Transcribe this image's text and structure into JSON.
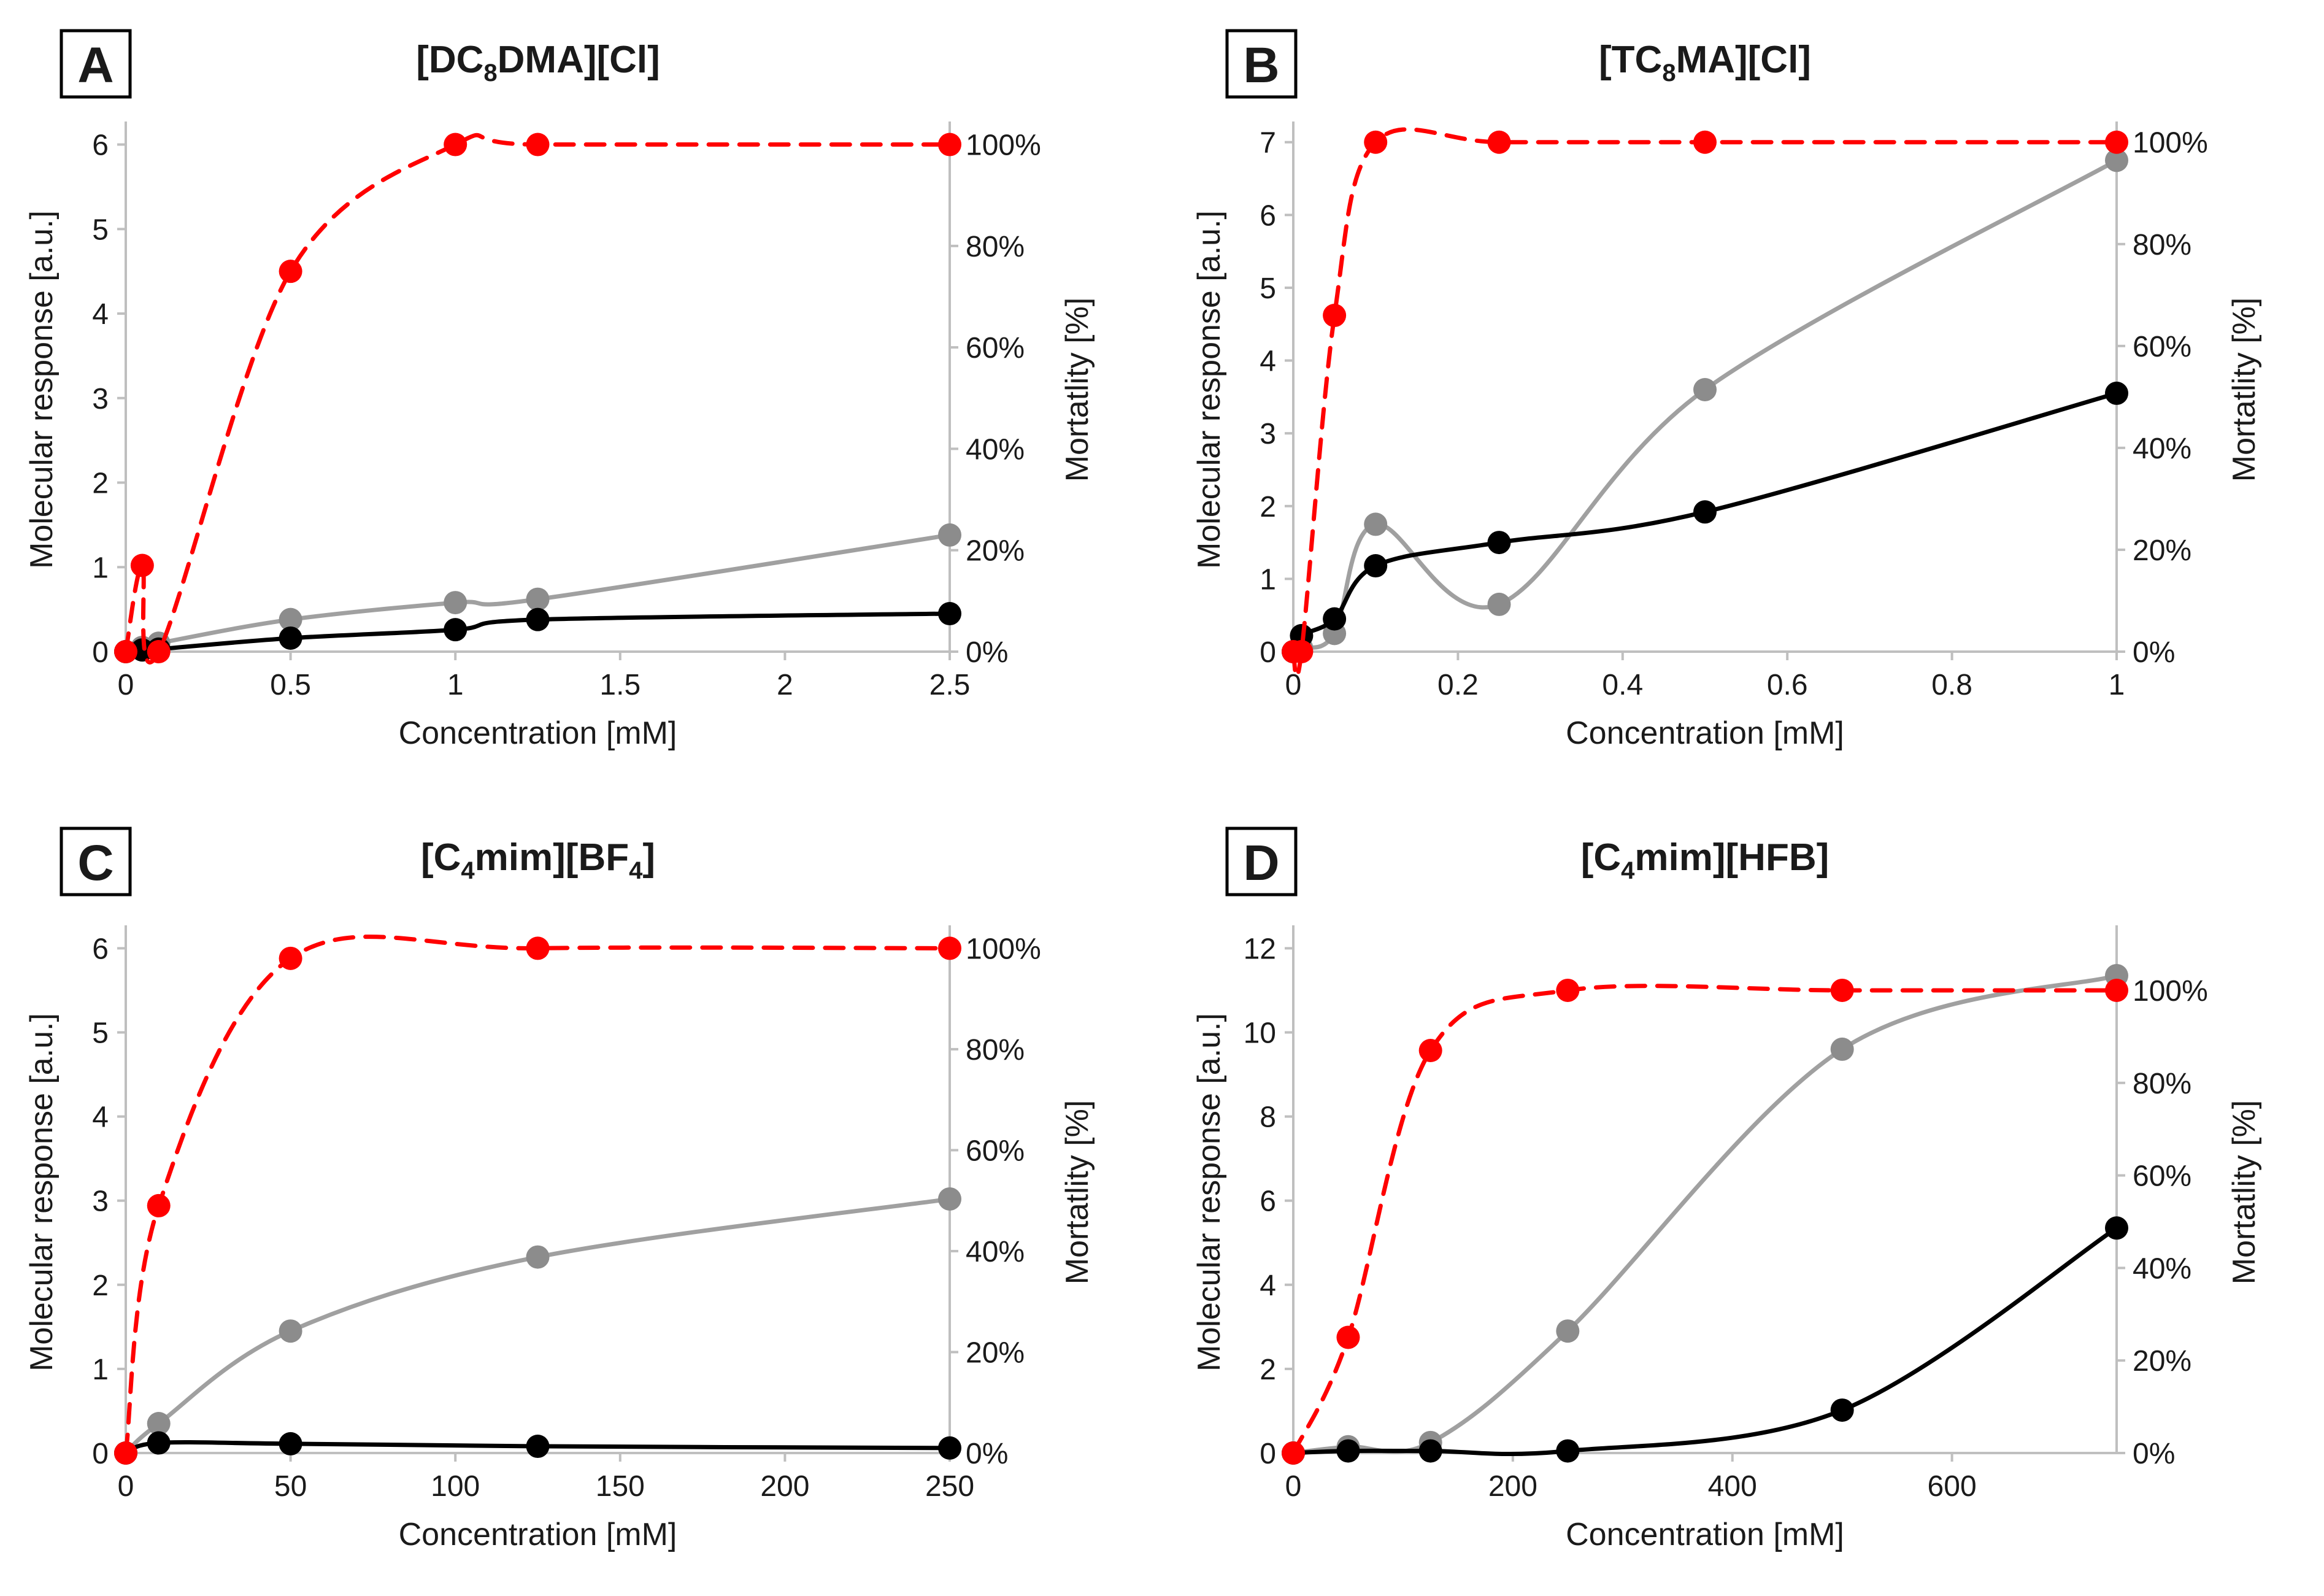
{
  "colors": {
    "grey": "#a0a0a0",
    "greyMarker": "#8c8c8c",
    "black": "#000000",
    "red": "#ff0000",
    "axis": "#bfbfbf"
  },
  "chart_data": [
    {
      "type": "line",
      "letter": "A",
      "title": {
        "pre": "[DC",
        "sub": "8",
        "post": "DMA][Cl]"
      },
      "xlabel": "Concentration [mM]",
      "ylabel": "Molecular response [a.u.]",
      "y2label": "Mortatlity [%]",
      "xlim": [
        0,
        2.5
      ],
      "xticks": [
        "0",
        "0.5",
        "1",
        "1.5",
        "2",
        "2.5"
      ],
      "xtick_values": [
        0,
        0.5,
        1,
        1.5,
        2,
        2.5
      ],
      "ylim": [
        0,
        6.2
      ],
      "yticks": [
        0,
        1,
        2,
        3,
        4,
        5,
        6
      ],
      "y2lim": [
        0,
        103.33
      ],
      "y2ticks": [
        "0%",
        "20%",
        "40%",
        "60%",
        "80%",
        "100%"
      ],
      "y2tick_values": [
        0,
        20,
        40,
        60,
        80,
        100
      ],
      "series": [
        {
          "name": "grey",
          "axis": "y1",
          "x": [
            0,
            0.05,
            0.1,
            0.5,
            1,
            1.25,
            2.5
          ],
          "values": [
            0,
            0.05,
            0.1,
            0.38,
            0.58,
            0.62,
            1.38
          ]
        },
        {
          "name": "black",
          "axis": "y1",
          "x": [
            0,
            0.05,
            0.1,
            0.5,
            1,
            1.25,
            2.5
          ],
          "values": [
            0,
            0.02,
            0.03,
            0.16,
            0.26,
            0.38,
            0.45
          ]
        },
        {
          "name": "mortality",
          "axis": "y2",
          "x": [
            0,
            0.05,
            0.1,
            0.5,
            1,
            1.25,
            2.5
          ],
          "values": [
            0,
            17,
            0,
            75,
            100,
            100,
            100
          ]
        }
      ]
    },
    {
      "type": "line",
      "letter": "B",
      "title": {
        "pre": "[TC",
        "sub": "8",
        "post": "MA][Cl]"
      },
      "xlabel": "Concentration [mM]",
      "ylabel": "Molecular response [a.u.]",
      "y2label": "Mortatlity [%]",
      "xlim": [
        0,
        1
      ],
      "xticks": [
        "0",
        "0.2",
        "0.4",
        "0.6",
        "0.8",
        "1"
      ],
      "xtick_values": [
        0,
        0.2,
        0.4,
        0.6,
        0.8,
        1
      ],
      "ylim": [
        0,
        7.2
      ],
      "yticks": [
        0,
        1,
        2,
        3,
        4,
        5,
        6,
        7
      ],
      "y2lim": [
        0,
        102.86
      ],
      "y2ticks": [
        "0%",
        "20%",
        "40%",
        "60%",
        "80%",
        "100%"
      ],
      "y2tick_values": [
        0,
        20,
        40,
        60,
        80,
        100
      ],
      "series": [
        {
          "name": "grey",
          "axis": "y1",
          "x": [
            0,
            0.01,
            0.05,
            0.1,
            0.25,
            0.5,
            1
          ],
          "values": [
            0,
            0.05,
            0.25,
            1.75,
            0.65,
            3.6,
            6.75
          ]
        },
        {
          "name": "black",
          "axis": "y1",
          "x": [
            0,
            0.01,
            0.05,
            0.1,
            0.25,
            0.5,
            1
          ],
          "values": [
            0,
            0.22,
            0.45,
            1.18,
            1.5,
            1.92,
            3.55
          ]
        },
        {
          "name": "mortality",
          "axis": "y2",
          "x": [
            0,
            0.01,
            0.05,
            0.1,
            0.25,
            0.5,
            1
          ],
          "values": [
            0,
            0,
            66,
            100,
            100,
            100,
            100
          ]
        }
      ]
    },
    {
      "type": "line",
      "letter": "C",
      "title": {
        "pre": "[C",
        "sub": "4",
        "mid": "mim][BF",
        "sub2": "4",
        "post": "]"
      },
      "xlabel": "Concentration [mM]",
      "ylabel": "Molecular response [a.u.]",
      "y2label": "Mortatlity [%]",
      "xlim": [
        0,
        250
      ],
      "xticks": [
        "0",
        "50",
        "100",
        "150",
        "200",
        "250"
      ],
      "xtick_values": [
        0,
        50,
        100,
        150,
        200,
        250
      ],
      "ylim": [
        0,
        6.2
      ],
      "yticks": [
        0,
        1,
        2,
        3,
        4,
        5,
        6
      ],
      "y2lim": [
        0,
        103.33
      ],
      "y2ticks": [
        "0%",
        "20%",
        "40%",
        "60%",
        "80%",
        "100%"
      ],
      "y2tick_values": [
        0,
        20,
        40,
        60,
        80,
        100
      ],
      "series": [
        {
          "name": "grey",
          "axis": "y1",
          "x": [
            0,
            10,
            50,
            125,
            250
          ],
          "values": [
            0,
            0.35,
            1.45,
            2.33,
            3.02
          ]
        },
        {
          "name": "black",
          "axis": "y1",
          "x": [
            0,
            10,
            50,
            125,
            250
          ],
          "values": [
            0,
            0.12,
            0.11,
            0.08,
            0.06
          ]
        },
        {
          "name": "mortality",
          "axis": "y2",
          "x": [
            0,
            10,
            50,
            125,
            250
          ],
          "values": [
            0,
            49,
            98,
            100,
            100
          ]
        }
      ]
    },
    {
      "type": "line",
      "letter": "D",
      "title": {
        "pre": "[C",
        "sub": "4",
        "post": "mim][HFB]"
      },
      "xlabel": "Concentration [mM]",
      "ylabel": "Molecular response [a.u.]",
      "y2label": "Mortatlity [%]",
      "xlim": [
        0,
        750
      ],
      "xticks": [
        "0",
        "200",
        "400",
        "600"
      ],
      "xtick_values": [
        0,
        200,
        400,
        600
      ],
      "ylim": [
        0,
        12.4
      ],
      "yticks": [
        0,
        2,
        4,
        6,
        8,
        10,
        12
      ],
      "y2lim": [
        0,
        112.73
      ],
      "y2ticks": [
        "0%",
        "20%",
        "40%",
        "60%",
        "80%",
        "100%"
      ],
      "y2tick_values": [
        0,
        20,
        40,
        60,
        80,
        100
      ],
      "series": [
        {
          "name": "grey",
          "axis": "y1",
          "x": [
            0,
            50,
            125,
            250,
            500,
            750
          ],
          "values": [
            0,
            0.15,
            0.25,
            2.9,
            9.6,
            11.35
          ]
        },
        {
          "name": "black",
          "axis": "y1",
          "x": [
            0,
            50,
            125,
            250,
            500,
            750
          ],
          "values": [
            0,
            0.05,
            0.05,
            0.05,
            1.02,
            5.35
          ]
        },
        {
          "name": "mortality",
          "axis": "y2",
          "x": [
            0,
            50,
            125,
            250,
            500,
            750
          ],
          "values": [
            0,
            25,
            87,
            100,
            100,
            100
          ]
        }
      ]
    }
  ]
}
